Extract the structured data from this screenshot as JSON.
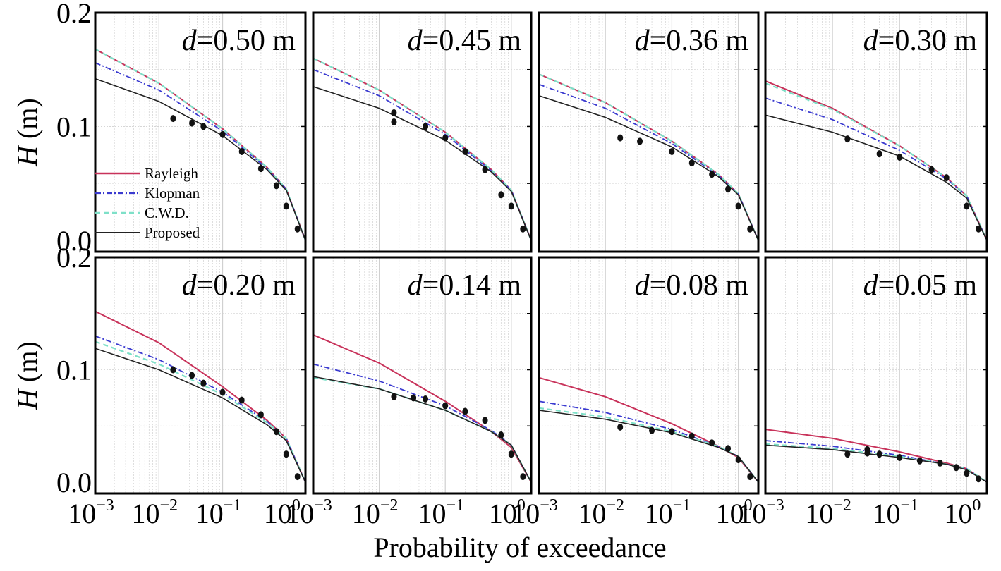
{
  "figure": {
    "xlabel": "Probability of exceedance",
    "ylabel": "H (m)",
    "y_ticks": [
      "0.0",
      "0.1",
      "0.2"
    ],
    "x_tick_base": "10",
    "x_tick_exponents": [
      "−3",
      "−2",
      "−1",
      "0"
    ]
  },
  "legend": {
    "location": "lower-left of first panel",
    "items": [
      {
        "label": "Rayleigh",
        "color": "#c8325a",
        "style": "solid"
      },
      {
        "label": "Klopman",
        "color": "#3a3ad0",
        "style": "dash-dot"
      },
      {
        "label": "C.W.D.",
        "color": "#7ee0c8",
        "style": "dashed"
      },
      {
        "label": "Proposed",
        "color": "#222222",
        "style": "solid"
      }
    ]
  },
  "colors": {
    "rayleigh": "#c8325a",
    "klopman": "#3a3ad0",
    "cwd": "#7ee0c8",
    "proposed": "#222222",
    "observed": "#111111",
    "grid": "#d0d0d0"
  },
  "chart_data": [
    {
      "type": "line",
      "title": "d=0.50 m",
      "depth": "0.50",
      "x_scale": "log",
      "xlim": [
        0.001,
        2
      ],
      "ylim": [
        -0.01,
        0.2
      ],
      "grid": true,
      "series": [
        {
          "name": "Rayleigh",
          "x": [
            0.001,
            0.01,
            0.1,
            0.5,
            1,
            2
          ],
          "y": [
            0.168,
            0.138,
            0.098,
            0.064,
            0.045,
            0.0
          ]
        },
        {
          "name": "Klopman",
          "x": [
            0.001,
            0.01,
            0.1,
            0.5,
            1,
            2
          ],
          "y": [
            0.156,
            0.132,
            0.096,
            0.063,
            0.045,
            0.0
          ]
        },
        {
          "name": "C.W.D.",
          "x": [
            0.001,
            0.01,
            0.1,
            0.5,
            1,
            2
          ],
          "y": [
            0.168,
            0.138,
            0.098,
            0.064,
            0.045,
            0.0
          ]
        },
        {
          "name": "Proposed",
          "x": [
            0.001,
            0.01,
            0.1,
            0.5,
            1,
            2
          ],
          "y": [
            0.142,
            0.122,
            0.092,
            0.062,
            0.044,
            0.0
          ]
        },
        {
          "name": "Observed",
          "x": [
            0.0167,
            0.033,
            0.05,
            0.1,
            0.2,
            0.4,
            0.7,
            1.0,
            1.5
          ],
          "y": [
            0.107,
            0.103,
            0.1,
            0.093,
            0.078,
            0.063,
            0.048,
            0.03,
            0.01
          ]
        }
      ]
    },
    {
      "type": "line",
      "title": "d=0.45 m",
      "depth": "0.45",
      "x_scale": "log",
      "xlim": [
        0.001,
        2
      ],
      "ylim": [
        -0.01,
        0.2
      ],
      "grid": true,
      "series": [
        {
          "name": "Rayleigh",
          "x": [
            0.001,
            0.01,
            0.1,
            0.5,
            1,
            2
          ],
          "y": [
            0.16,
            0.132,
            0.095,
            0.062,
            0.044,
            0.0
          ]
        },
        {
          "name": "Klopman",
          "x": [
            0.001,
            0.01,
            0.1,
            0.5,
            1,
            2
          ],
          "y": [
            0.15,
            0.127,
            0.093,
            0.061,
            0.044,
            0.0
          ]
        },
        {
          "name": "C.W.D.",
          "x": [
            0.001,
            0.01,
            0.1,
            0.5,
            1,
            2
          ],
          "y": [
            0.16,
            0.132,
            0.095,
            0.062,
            0.044,
            0.0
          ]
        },
        {
          "name": "Proposed",
          "x": [
            0.001,
            0.01,
            0.1,
            0.5,
            1,
            2
          ],
          "y": [
            0.135,
            0.116,
            0.088,
            0.06,
            0.043,
            0.0
          ]
        },
        {
          "name": "Observed",
          "x": [
            0.0167,
            0.0167,
            0.05,
            0.1,
            0.2,
            0.4,
            0.7,
            1.0,
            1.5
          ],
          "y": [
            0.112,
            0.104,
            0.1,
            0.09,
            0.078,
            0.062,
            0.04,
            0.03,
            0.01
          ]
        }
      ]
    },
    {
      "type": "line",
      "title": "d=0.36 m",
      "depth": "0.36",
      "x_scale": "log",
      "xlim": [
        0.001,
        2
      ],
      "ylim": [
        -0.01,
        0.2
      ],
      "grid": true,
      "series": [
        {
          "name": "Rayleigh",
          "x": [
            0.001,
            0.01,
            0.1,
            0.5,
            1,
            2
          ],
          "y": [
            0.146,
            0.121,
            0.087,
            0.058,
            0.041,
            0.0
          ]
        },
        {
          "name": "Klopman",
          "x": [
            0.001,
            0.01,
            0.1,
            0.5,
            1,
            2
          ],
          "y": [
            0.137,
            0.116,
            0.085,
            0.057,
            0.041,
            0.0
          ]
        },
        {
          "name": "C.W.D.",
          "x": [
            0.001,
            0.01,
            0.1,
            0.5,
            1,
            2
          ],
          "y": [
            0.146,
            0.121,
            0.087,
            0.058,
            0.041,
            0.0
          ]
        },
        {
          "name": "Proposed",
          "x": [
            0.001,
            0.01,
            0.1,
            0.5,
            1,
            2
          ],
          "y": [
            0.127,
            0.108,
            0.082,
            0.056,
            0.04,
            0.0
          ]
        },
        {
          "name": "Observed",
          "x": [
            0.0167,
            0.033,
            0.1,
            0.2,
            0.4,
            0.7,
            1.0,
            1.5
          ],
          "y": [
            0.09,
            0.087,
            0.078,
            0.068,
            0.058,
            0.045,
            0.03,
            0.01
          ]
        }
      ]
    },
    {
      "type": "line",
      "title": "d=0.30 m",
      "depth": "0.30",
      "x_scale": "log",
      "xlim": [
        0.001,
        2
      ],
      "ylim": [
        -0.01,
        0.2
      ],
      "grid": true,
      "series": [
        {
          "name": "Rayleigh",
          "x": [
            0.001,
            0.01,
            0.1,
            0.5,
            1,
            2
          ],
          "y": [
            0.14,
            0.116,
            0.083,
            0.055,
            0.039,
            0.0
          ]
        },
        {
          "name": "Klopman",
          "x": [
            0.001,
            0.01,
            0.1,
            0.5,
            1,
            2
          ],
          "y": [
            0.125,
            0.106,
            0.079,
            0.054,
            0.039,
            0.0
          ]
        },
        {
          "name": "C.W.D.",
          "x": [
            0.001,
            0.01,
            0.1,
            0.5,
            1,
            2
          ],
          "y": [
            0.138,
            0.115,
            0.083,
            0.055,
            0.039,
            0.0
          ]
        },
        {
          "name": "Proposed",
          "x": [
            0.001,
            0.01,
            0.1,
            0.5,
            1,
            2
          ],
          "y": [
            0.11,
            0.095,
            0.074,
            0.051,
            0.037,
            0.0
          ]
        },
        {
          "name": "Observed",
          "x": [
            0.0167,
            0.05,
            0.1,
            0.3,
            0.5,
            1.0,
            1.5
          ],
          "y": [
            0.089,
            0.076,
            0.073,
            0.062,
            0.055,
            0.03,
            0.01
          ]
        }
      ]
    },
    {
      "type": "line",
      "title": "d=0.20 m",
      "depth": "0.20",
      "x_scale": "log",
      "xlim": [
        0.001,
        2
      ],
      "ylim": [
        -0.01,
        0.2
      ],
      "grid": true,
      "series": [
        {
          "name": "Rayleigh",
          "x": [
            0.001,
            0.01,
            0.1,
            0.5,
            1,
            2
          ],
          "y": [
            0.152,
            0.124,
            0.085,
            0.055,
            0.039,
            0.0
          ]
        },
        {
          "name": "Klopman",
          "x": [
            0.001,
            0.01,
            0.1,
            0.5,
            1,
            2
          ],
          "y": [
            0.13,
            0.109,
            0.08,
            0.054,
            0.039,
            0.0
          ]
        },
        {
          "name": "C.W.D.",
          "x": [
            0.001,
            0.01,
            0.1,
            0.5,
            1,
            2
          ],
          "y": [
            0.125,
            0.105,
            0.078,
            0.053,
            0.039,
            0.0
          ]
        },
        {
          "name": "Proposed",
          "x": [
            0.001,
            0.01,
            0.1,
            0.5,
            1,
            2
          ],
          "y": [
            0.119,
            0.1,
            0.075,
            0.051,
            0.037,
            0.0
          ]
        },
        {
          "name": "Observed",
          "x": [
            0.0167,
            0.033,
            0.05,
            0.1,
            0.2,
            0.4,
            0.7,
            1.0,
            1.5
          ],
          "y": [
            0.1,
            0.095,
            0.088,
            0.08,
            0.073,
            0.06,
            0.045,
            0.025,
            0.005
          ]
        }
      ]
    },
    {
      "type": "line",
      "title": "d=0.14 m",
      "depth": "0.14",
      "x_scale": "log",
      "xlim": [
        0.001,
        2
      ],
      "ylim": [
        -0.01,
        0.2
      ],
      "grid": true,
      "series": [
        {
          "name": "Rayleigh",
          "x": [
            0.001,
            0.01,
            0.1,
            0.5,
            1,
            2
          ],
          "y": [
            0.131,
            0.106,
            0.072,
            0.045,
            0.031,
            0.0
          ]
        },
        {
          "name": "Klopman",
          "x": [
            0.001,
            0.01,
            0.1,
            0.5,
            1,
            2
          ],
          "y": [
            0.105,
            0.09,
            0.068,
            0.046,
            0.033,
            0.0
          ]
        },
        {
          "name": "C.W.D.",
          "x": [
            0.001,
            0.01,
            0.1,
            0.5,
            1,
            2
          ],
          "y": [
            0.093,
            0.083,
            0.064,
            0.045,
            0.033,
            0.0
          ]
        },
        {
          "name": "Proposed",
          "x": [
            0.001,
            0.01,
            0.1,
            0.5,
            1,
            2
          ],
          "y": [
            0.094,
            0.083,
            0.064,
            0.045,
            0.033,
            0.0
          ]
        },
        {
          "name": "Observed",
          "x": [
            0.0167,
            0.033,
            0.05,
            0.1,
            0.2,
            0.4,
            0.7,
            1.0,
            1.5
          ],
          "y": [
            0.076,
            0.075,
            0.074,
            0.068,
            0.063,
            0.055,
            0.042,
            0.025,
            0.005
          ]
        }
      ]
    },
    {
      "type": "line",
      "title": "d=0.08 m",
      "depth": "0.08",
      "x_scale": "log",
      "xlim": [
        0.001,
        2
      ],
      "ylim": [
        -0.01,
        0.2
      ],
      "grid": true,
      "series": [
        {
          "name": "Rayleigh",
          "x": [
            0.001,
            0.01,
            0.1,
            0.5,
            1,
            2
          ],
          "y": [
            0.093,
            0.076,
            0.052,
            0.032,
            0.022,
            0.0
          ]
        },
        {
          "name": "Klopman",
          "x": [
            0.001,
            0.01,
            0.1,
            0.5,
            1,
            2
          ],
          "y": [
            0.072,
            0.062,
            0.047,
            0.032,
            0.023,
            0.0
          ]
        },
        {
          "name": "C.W.D.",
          "x": [
            0.001,
            0.01,
            0.1,
            0.5,
            1,
            2
          ],
          "y": [
            0.066,
            0.058,
            0.045,
            0.032,
            0.023,
            0.0
          ]
        },
        {
          "name": "Proposed",
          "x": [
            0.001,
            0.01,
            0.1,
            0.5,
            1,
            2
          ],
          "y": [
            0.064,
            0.056,
            0.044,
            0.031,
            0.023,
            0.0
          ]
        },
        {
          "name": "Observed",
          "x": [
            0.0167,
            0.05,
            0.1,
            0.2,
            0.4,
            0.7,
            1.0,
            1.5
          ],
          "y": [
            0.049,
            0.046,
            0.045,
            0.041,
            0.035,
            0.03,
            0.02,
            0.005
          ]
        }
      ]
    },
    {
      "type": "line",
      "title": "d=0.05 m",
      "depth": "0.05",
      "x_scale": "log",
      "xlim": [
        0.001,
        2
      ],
      "ylim": [
        -0.01,
        0.2
      ],
      "grid": true,
      "series": [
        {
          "name": "Rayleigh",
          "x": [
            0.001,
            0.01,
            0.1,
            0.5,
            1,
            2
          ],
          "y": [
            0.047,
            0.039,
            0.027,
            0.017,
            0.012,
            0.0
          ]
        },
        {
          "name": "Klopman",
          "x": [
            0.001,
            0.01,
            0.1,
            0.5,
            1,
            2
          ],
          "y": [
            0.037,
            0.032,
            0.024,
            0.016,
            0.012,
            0.0
          ]
        },
        {
          "name": "C.W.D.",
          "x": [
            0.001,
            0.01,
            0.1,
            0.5,
            1,
            2
          ],
          "y": [
            0.034,
            0.03,
            0.023,
            0.016,
            0.012,
            0.0
          ]
        },
        {
          "name": "Proposed",
          "x": [
            0.001,
            0.01,
            0.1,
            0.5,
            1,
            2
          ],
          "y": [
            0.033,
            0.029,
            0.022,
            0.016,
            0.011,
            0.0
          ]
        },
        {
          "name": "Observed",
          "x": [
            0.0167,
            0.033,
            0.033,
            0.05,
            0.1,
            0.2,
            0.4,
            0.7,
            1.0,
            1.5
          ],
          "y": [
            0.025,
            0.029,
            0.026,
            0.025,
            0.022,
            0.019,
            0.017,
            0.013,
            0.008,
            0.003
          ]
        }
      ]
    }
  ]
}
